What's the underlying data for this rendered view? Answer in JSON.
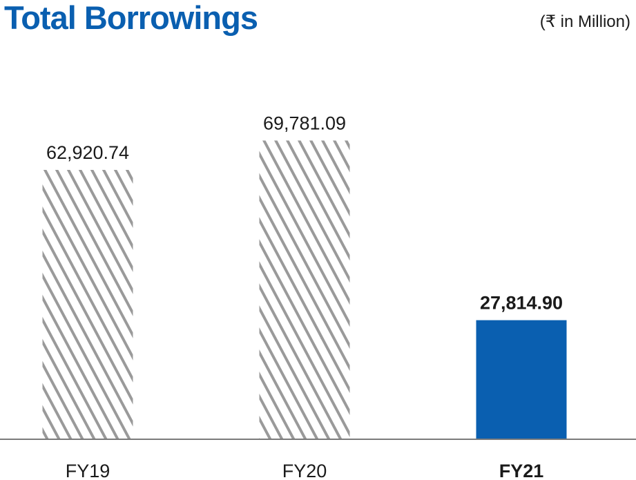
{
  "header": {
    "title": "Total Borrowings",
    "unit": "(₹ in Million)"
  },
  "chart_data": {
    "type": "bar",
    "title": "Total Borrowings",
    "unit": "(₹ in Million)",
    "categories": [
      "FY19",
      "FY20",
      "FY21"
    ],
    "values": [
      62920.74,
      69781.09,
      27814.9
    ],
    "value_labels": [
      "62,920.74",
      "69,781.09",
      "27,814.90"
    ],
    "highlight_index": 2,
    "colors": {
      "highlight": "#0a5fb0",
      "hatch": "#9a9a9a",
      "axis": "#7a7a7a",
      "text": "#1a1a1a"
    },
    "xlabel": "",
    "ylabel": "",
    "grid": false
  }
}
